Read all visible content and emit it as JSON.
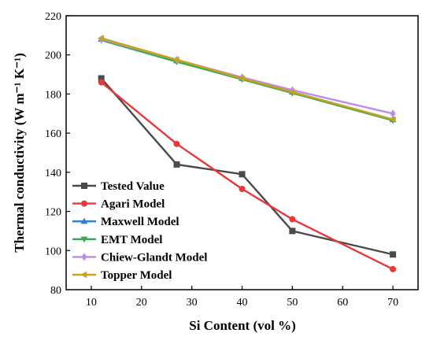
{
  "chart_data": {
    "type": "line",
    "xlabel": "Si Content (vol %)",
    "ylabel": "Thermal conductivity (W m⁻¹ K⁻¹)",
    "xlim": [
      5,
      75
    ],
    "ylim": [
      80,
      220
    ],
    "xticks": [
      10,
      20,
      30,
      40,
      50,
      60,
      70
    ],
    "yticks": [
      80,
      100,
      120,
      140,
      160,
      180,
      200,
      220
    ],
    "grid": false,
    "legend_position": "bottom-left",
    "x": [
      12,
      27,
      40,
      50,
      70
    ],
    "series": [
      {
        "name": "Tested Value",
        "color": "#4a4a4a",
        "marker": "square",
        "values": [
          188,
          144,
          139,
          110,
          98
        ]
      },
      {
        "name": "Agari Model",
        "color": "#e8383a",
        "marker": "circle",
        "values": [
          186,
          154.5,
          131.5,
          116,
          90.5
        ]
      },
      {
        "name": "Maxwell Model",
        "color": "#2f7fd0",
        "marker": "triangle-up",
        "values": [
          208,
          197,
          188,
          181,
          167
        ]
      },
      {
        "name": "EMT Model",
        "color": "#3aaa55",
        "marker": "triangle-down",
        "values": [
          207.5,
          196.5,
          187.5,
          180.5,
          166.5
        ]
      },
      {
        "name": "Chiew-Glandt Model",
        "color": "#b98de8",
        "marker": "diamond",
        "values": [
          208,
          197.5,
          188.5,
          182,
          170
        ]
      },
      {
        "name": "Topper Model",
        "color": "#c9a21a",
        "marker": "triangle-left",
        "values": [
          208.5,
          197.5,
          188,
          181,
          167
        ]
      }
    ]
  }
}
